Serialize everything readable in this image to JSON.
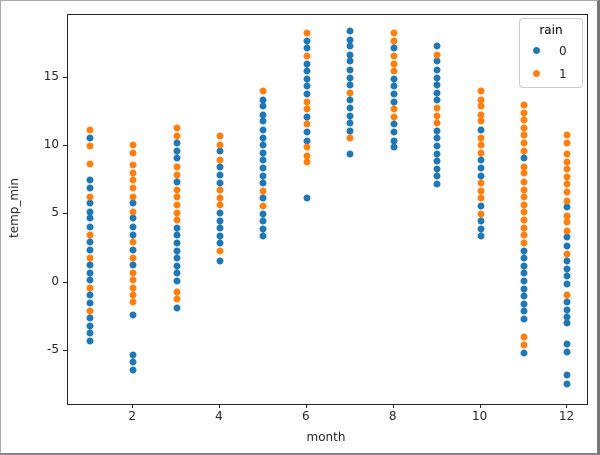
{
  "colors": {
    "rain0": "#1f77b4",
    "rain1": "#ff7f0e",
    "spine": "#262626",
    "background": "#ffffff",
    "legend_border": "#cccccc"
  },
  "chart_data": {
    "type": "scatter",
    "title": "",
    "xlabel": "month",
    "ylabel": "temp_min",
    "xlim": [
      0.5,
      12.45
    ],
    "ylim": [
      -8.9,
      19.6
    ],
    "x_ticks": [
      2,
      4,
      6,
      8,
      10,
      12
    ],
    "y_ticks": [
      -5,
      0,
      5,
      10,
      15
    ],
    "grid": false,
    "legend": {
      "title": "rain",
      "position": "upper right",
      "entries": [
        {
          "label": "0",
          "color": "#1f77b4"
        },
        {
          "label": "1",
          "color": "#ff7f0e"
        }
      ]
    },
    "series": [
      {
        "name": "0",
        "color": "#1f77b4",
        "points": [
          [
            1,
            10.6
          ],
          [
            1,
            7.5
          ],
          [
            1,
            6.9
          ],
          [
            1,
            5.8
          ],
          [
            1,
            5.2
          ],
          [
            1,
            4.7
          ],
          [
            1,
            4.1
          ],
          [
            1,
            3.0
          ],
          [
            1,
            2.4
          ],
          [
            1,
            1.3
          ],
          [
            1,
            0.7
          ],
          [
            1,
            0.2
          ],
          [
            1,
            -0.9
          ],
          [
            1,
            -1.5
          ],
          [
            1,
            -2.6
          ],
          [
            1,
            -3.2
          ],
          [
            1,
            -3.7
          ],
          [
            1,
            -4.3
          ],
          [
            2,
            5.8
          ],
          [
            2,
            4.7
          ],
          [
            2,
            4.1
          ],
          [
            2,
            3.5
          ],
          [
            2,
            2.4
          ],
          [
            2,
            1.3
          ],
          [
            2,
            -2.4
          ],
          [
            2,
            -5.3
          ],
          [
            2,
            -5.8
          ],
          [
            2,
            -6.4
          ],
          [
            3,
            10.2
          ],
          [
            3,
            9.6
          ],
          [
            3,
            9.1
          ],
          [
            3,
            7.4
          ],
          [
            3,
            4.0
          ],
          [
            3,
            3.5
          ],
          [
            3,
            2.9
          ],
          [
            3,
            2.3
          ],
          [
            3,
            1.8
          ],
          [
            3,
            1.2
          ],
          [
            3,
            0.7
          ],
          [
            3,
            0.1
          ],
          [
            3,
            -1.9
          ],
          [
            4,
            9.6
          ],
          [
            4,
            8.5
          ],
          [
            4,
            7.9
          ],
          [
            4,
            7.3
          ],
          [
            4,
            5.1
          ],
          [
            4,
            4.5
          ],
          [
            4,
            4.0
          ],
          [
            4,
            3.4
          ],
          [
            4,
            2.9
          ],
          [
            4,
            1.6
          ],
          [
            5,
            13.4
          ],
          [
            5,
            12.9
          ],
          [
            5,
            12.3
          ],
          [
            5,
            11.8
          ],
          [
            5,
            11.2
          ],
          [
            5,
            10.6
          ],
          [
            5,
            10.1
          ],
          [
            5,
            9.5
          ],
          [
            5,
            9.0
          ],
          [
            5,
            8.4
          ],
          [
            5,
            7.8
          ],
          [
            5,
            7.3
          ],
          [
            5,
            6.2
          ],
          [
            5,
            5.0
          ],
          [
            5,
            4.5
          ],
          [
            5,
            3.9
          ],
          [
            5,
            3.4
          ],
          [
            6,
            17.7
          ],
          [
            6,
            17.2
          ],
          [
            6,
            16.0
          ],
          [
            6,
            15.5
          ],
          [
            6,
            14.9
          ],
          [
            6,
            14.4
          ],
          [
            6,
            13.8
          ],
          [
            6,
            12.1
          ],
          [
            6,
            11.0
          ],
          [
            6,
            10.4
          ],
          [
            6,
            6.2
          ],
          [
            7,
            18.4
          ],
          [
            7,
            17.8
          ],
          [
            7,
            17.3
          ],
          [
            7,
            16.7
          ],
          [
            7,
            16.2
          ],
          [
            7,
            15.6
          ],
          [
            7,
            15.0
          ],
          [
            7,
            14.5
          ],
          [
            7,
            13.4
          ],
          [
            7,
            12.8
          ],
          [
            7,
            12.2
          ],
          [
            7,
            11.7
          ],
          [
            7,
            11.1
          ],
          [
            7,
            9.4
          ],
          [
            8,
            17.2
          ],
          [
            8,
            14.9
          ],
          [
            8,
            14.4
          ],
          [
            8,
            13.8
          ],
          [
            8,
            13.2
          ],
          [
            8,
            11.6
          ],
          [
            8,
            11.0
          ],
          [
            8,
            10.4
          ],
          [
            8,
            9.9
          ],
          [
            9,
            17.3
          ],
          [
            9,
            16.2
          ],
          [
            9,
            15.6
          ],
          [
            9,
            15.0
          ],
          [
            9,
            14.5
          ],
          [
            9,
            13.9
          ],
          [
            9,
            13.4
          ],
          [
            9,
            11.1
          ],
          [
            9,
            10.6
          ],
          [
            9,
            10.0
          ],
          [
            9,
            9.4
          ],
          [
            9,
            8.9
          ],
          [
            9,
            8.3
          ],
          [
            9,
            7.8
          ],
          [
            9,
            7.2
          ],
          [
            10,
            11.2
          ],
          [
            10,
            9.0
          ],
          [
            10,
            8.4
          ],
          [
            10,
            7.8
          ],
          [
            10,
            5.6
          ],
          [
            10,
            4.5
          ],
          [
            10,
            3.9
          ],
          [
            10,
            3.4
          ],
          [
            11,
            9.1
          ],
          [
            11,
            2.3
          ],
          [
            11,
            1.8
          ],
          [
            11,
            1.2
          ],
          [
            11,
            0.7
          ],
          [
            11,
            0.1
          ],
          [
            11,
            -0.5
          ],
          [
            11,
            -1.0
          ],
          [
            11,
            -1.6
          ],
          [
            11,
            -2.1
          ],
          [
            11,
            -2.7
          ],
          [
            11,
            -5.2
          ],
          [
            12,
            5.5
          ],
          [
            12,
            3.3
          ],
          [
            12,
            2.7
          ],
          [
            12,
            1.6
          ],
          [
            12,
            1.0
          ],
          [
            12,
            0.5
          ],
          [
            12,
            -0.1
          ],
          [
            12,
            -1.4
          ],
          [
            12,
            -2.0
          ],
          [
            12,
            -2.5
          ],
          [
            12,
            -3.0
          ],
          [
            12,
            -4.5
          ],
          [
            12,
            -5.1
          ],
          [
            12,
            -6.8
          ],
          [
            12,
            -7.4
          ]
        ]
      },
      {
        "name": "1",
        "color": "#ff7f0e",
        "points": [
          [
            1,
            11.2
          ],
          [
            1,
            10.0
          ],
          [
            1,
            8.7
          ],
          [
            1,
            6.3
          ],
          [
            1,
            3.5
          ],
          [
            1,
            1.8
          ],
          [
            1,
            -0.4
          ],
          [
            1,
            -2.1
          ],
          [
            2,
            10.1
          ],
          [
            2,
            9.5
          ],
          [
            2,
            8.6
          ],
          [
            2,
            8.0
          ],
          [
            2,
            7.5
          ],
          [
            2,
            6.9
          ],
          [
            2,
            6.3
          ],
          [
            2,
            5.2
          ],
          [
            2,
            3.0
          ],
          [
            2,
            1.8
          ],
          [
            2,
            0.7
          ],
          [
            2,
            0.2
          ],
          [
            2,
            -0.4
          ],
          [
            2,
            -0.9
          ],
          [
            2,
            -1.4
          ],
          [
            3,
            11.3
          ],
          [
            3,
            10.7
          ],
          [
            3,
            8.5
          ],
          [
            3,
            7.9
          ],
          [
            3,
            6.8
          ],
          [
            3,
            6.3
          ],
          [
            3,
            5.7
          ],
          [
            3,
            5.1
          ],
          [
            3,
            4.6
          ],
          [
            3,
            -0.7
          ],
          [
            3,
            -1.2
          ],
          [
            4,
            10.7
          ],
          [
            4,
            10.1
          ],
          [
            4,
            9.0
          ],
          [
            4,
            6.8
          ],
          [
            4,
            6.2
          ],
          [
            4,
            5.7
          ],
          [
            4,
            2.3
          ],
          [
            5,
            14.0
          ],
          [
            5,
            6.7
          ],
          [
            5,
            5.6
          ],
          [
            6,
            18.3
          ],
          [
            6,
            16.6
          ],
          [
            6,
            13.2
          ],
          [
            6,
            12.7
          ],
          [
            6,
            11.6
          ],
          [
            6,
            9.9
          ],
          [
            6,
            9.3
          ],
          [
            6,
            8.8
          ],
          [
            7,
            13.9
          ],
          [
            7,
            10.6
          ],
          [
            8,
            18.3
          ],
          [
            8,
            17.7
          ],
          [
            8,
            16.6
          ],
          [
            8,
            16.0
          ],
          [
            8,
            15.5
          ],
          [
            8,
            12.7
          ],
          [
            8,
            12.1
          ],
          [
            9,
            16.7
          ],
          [
            9,
            12.8
          ],
          [
            9,
            12.2
          ],
          [
            9,
            11.7
          ],
          [
            10,
            14.0
          ],
          [
            10,
            13.4
          ],
          [
            10,
            12.9
          ],
          [
            10,
            12.3
          ],
          [
            10,
            11.8
          ],
          [
            10,
            10.6
          ],
          [
            10,
            10.1
          ],
          [
            10,
            9.5
          ],
          [
            10,
            7.3
          ],
          [
            10,
            6.7
          ],
          [
            10,
            6.2
          ],
          [
            10,
            5.0
          ],
          [
            11,
            13.0
          ],
          [
            11,
            12.4
          ],
          [
            11,
            11.9
          ],
          [
            11,
            11.3
          ],
          [
            11,
            10.8
          ],
          [
            11,
            10.2
          ],
          [
            11,
            9.6
          ],
          [
            11,
            8.5
          ],
          [
            11,
            8.0
          ],
          [
            11,
            7.4
          ],
          [
            11,
            6.8
          ],
          [
            11,
            6.3
          ],
          [
            11,
            5.7
          ],
          [
            11,
            5.2
          ],
          [
            11,
            4.6
          ],
          [
            11,
            4.0
          ],
          [
            11,
            3.5
          ],
          [
            11,
            2.9
          ],
          [
            11,
            -4.0
          ],
          [
            11,
            -4.6
          ],
          [
            12,
            10.8
          ],
          [
            12,
            10.2
          ],
          [
            12,
            9.4
          ],
          [
            12,
            8.8
          ],
          [
            12,
            8.3
          ],
          [
            12,
            7.7
          ],
          [
            12,
            7.2
          ],
          [
            12,
            6.6
          ],
          [
            12,
            6.0
          ],
          [
            12,
            4.9
          ],
          [
            12,
            4.4
          ],
          [
            12,
            3.8
          ],
          [
            12,
            2.1
          ],
          [
            12,
            -0.9
          ]
        ]
      }
    ]
  }
}
